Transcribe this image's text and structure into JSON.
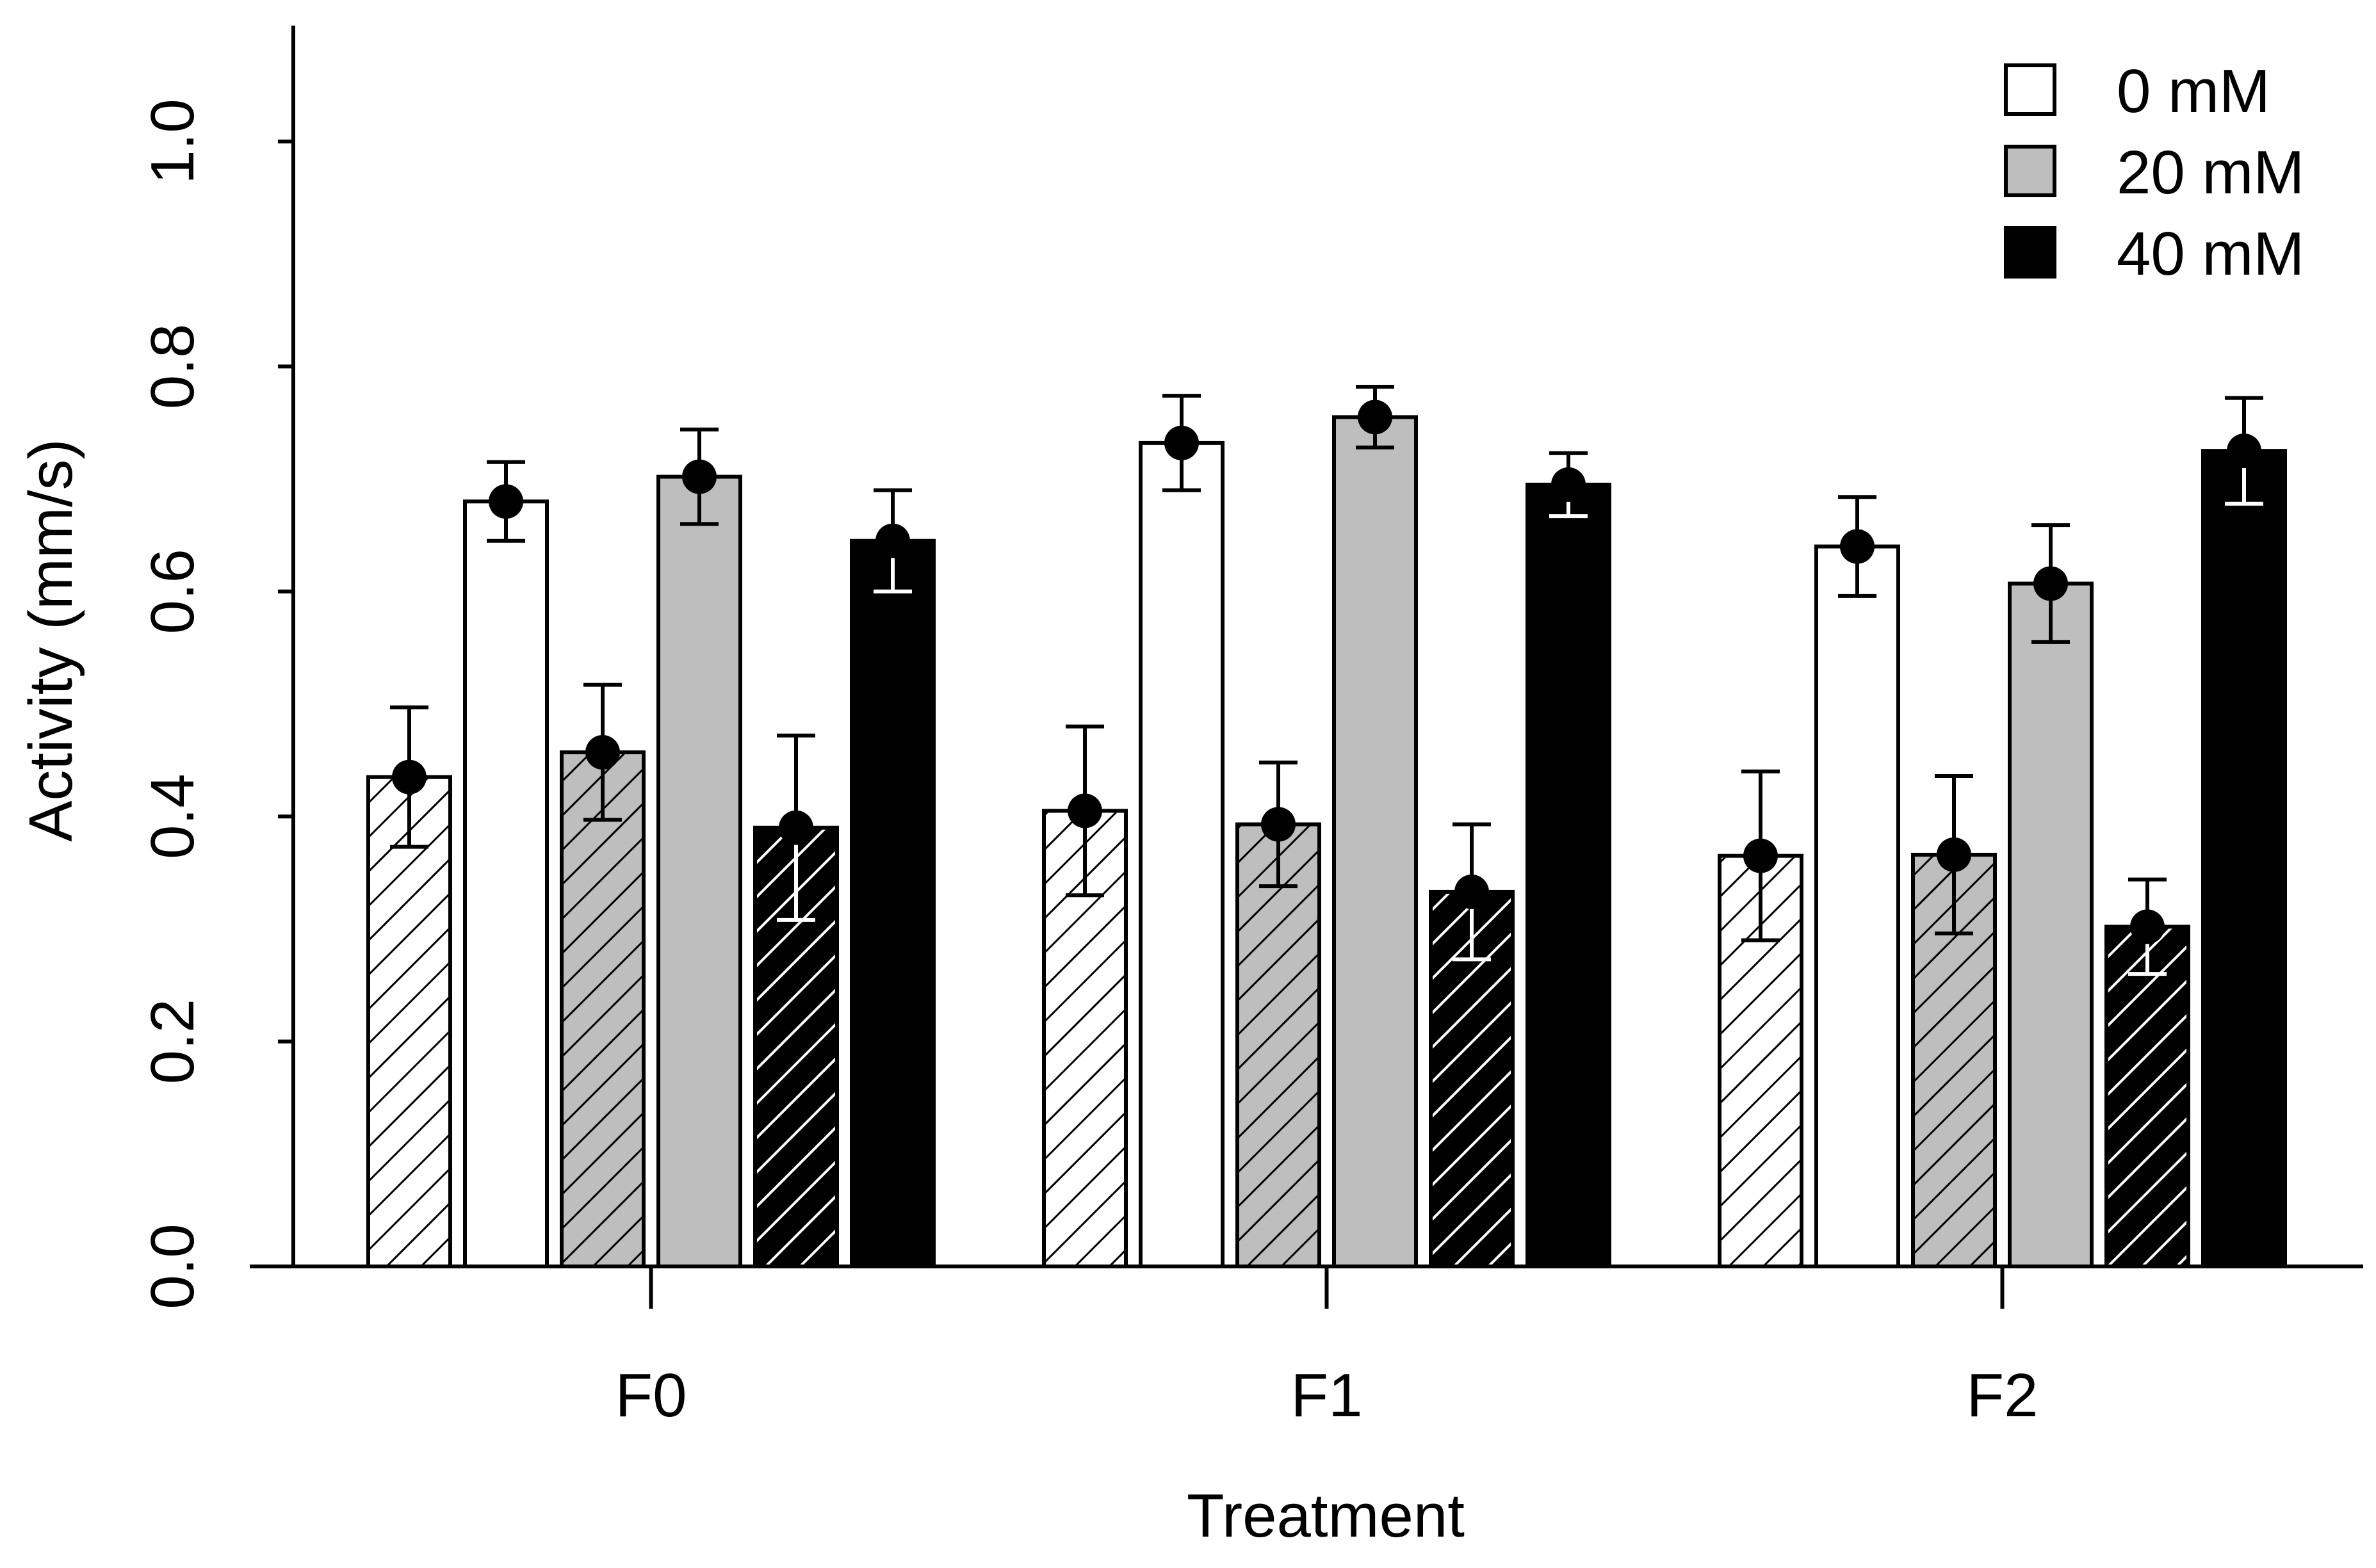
{
  "chart_data": {
    "type": "bar",
    "title": "",
    "xlabel": "Treatment",
    "ylabel": "Activity (mm/s)",
    "ylim": [
      0,
      1.1
    ],
    "yticks": [
      "0.0",
      "0.2",
      "0.4",
      "0.6",
      "0.8",
      "1.0"
    ],
    "grid": false,
    "legend_position": "top-right",
    "categories": [
      "F0",
      "F1",
      "F2"
    ],
    "series": [
      {
        "name": "0 mM hatched",
        "fill": "#ffffff",
        "hatched": true,
        "values": [
          0.435,
          0.405,
          0.365
        ],
        "errors": [
          0.062,
          0.075,
          0.075
        ]
      },
      {
        "name": "0 mM",
        "fill": "#ffffff",
        "hatched": false,
        "values": [
          0.68,
          0.732,
          0.64
        ],
        "errors": [
          0.035,
          0.042,
          0.044
        ]
      },
      {
        "name": "20 mM hatched",
        "fill": "#bebebe",
        "hatched": true,
        "values": [
          0.457,
          0.393,
          0.366
        ],
        "errors": [
          0.06,
          0.055,
          0.07
        ]
      },
      {
        "name": "20 mM",
        "fill": "#bebebe",
        "hatched": false,
        "values": [
          0.702,
          0.755,
          0.607
        ],
        "errors": [
          0.042,
          0.027,
          0.052
        ]
      },
      {
        "name": "40 mM hatched",
        "fill": "#000000",
        "hatched": true,
        "values": [
          0.39,
          0.333,
          0.302
        ],
        "errors": [
          0.082,
          0.06,
          0.042
        ]
      },
      {
        "name": "40 mM",
        "fill": "#000000",
        "hatched": false,
        "values": [
          0.645,
          0.695,
          0.725
        ],
        "errors": [
          0.045,
          0.028,
          0.047
        ]
      }
    ],
    "legend": [
      {
        "label": "0 mM",
        "color": "#ffffff"
      },
      {
        "label": "20 mM",
        "color": "#bebebe"
      },
      {
        "label": "40 mM",
        "color": "#000000"
      }
    ]
  }
}
